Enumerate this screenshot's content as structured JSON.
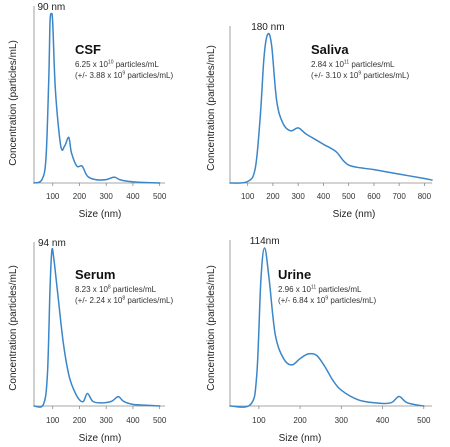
{
  "chart_data": [
    {
      "type": "line",
      "title": "CSF",
      "info_line1": {
        "base": "6.25 x 10",
        "exp": "10",
        "unit": " particles/mL"
      },
      "info_line2": {
        "base": "(+/- 3.88 x 10",
        "exp": "9",
        "unit": " particles/mL)"
      },
      "peak_label": "90 nm",
      "xlabel": "Size (nm)",
      "ylabel": "Concentration (particles/mL)",
      "xticks": [
        100,
        200,
        300,
        400,
        500
      ],
      "xlim": [
        30,
        520
      ],
      "ylim": [
        0,
        1.0
      ],
      "x": [
        30,
        60,
        75,
        85,
        90,
        95,
        100,
        110,
        130,
        145,
        160,
        170,
        190,
        210,
        230,
        260,
        300,
        330,
        350,
        380,
        420,
        500
      ],
      "y": [
        0,
        0.02,
        0.15,
        0.6,
        0.95,
        1.0,
        0.95,
        0.55,
        0.22,
        0.22,
        0.27,
        0.18,
        0.1,
        0.1,
        0.04,
        0.02,
        0.02,
        0.035,
        0.02,
        0.01,
        0.005,
        0
      ]
    },
    {
      "type": "line",
      "title": "Saliva",
      "info_line1": {
        "base": "2.84 x 10",
        "exp": "11",
        "unit": " particles/mL"
      },
      "info_line2": {
        "base": "(+/- 3.10 x 10",
        "exp": "9",
        "unit": " particles/mL)"
      },
      "peak_label": "180 nm",
      "xlabel": "Size (nm)",
      "ylabel": "Concentration (particles/mL)",
      "xticks": [
        100,
        200,
        300,
        400,
        500,
        600,
        700,
        800
      ],
      "xlim": [
        30,
        830
      ],
      "ylim": [
        0,
        1.0
      ],
      "x": [
        30,
        100,
        130,
        150,
        165,
        180,
        195,
        215,
        240,
        270,
        300,
        330,
        360,
        400,
        450,
        500,
        600,
        700,
        800,
        830
      ],
      "y": [
        0,
        0.01,
        0.1,
        0.45,
        0.85,
        1.0,
        0.92,
        0.55,
        0.4,
        0.35,
        0.37,
        0.33,
        0.3,
        0.26,
        0.21,
        0.12,
        0.09,
        0.06,
        0.03,
        0.02
      ]
    },
    {
      "type": "line",
      "title": "Serum",
      "info_line1": {
        "base": "8.23 x 10",
        "exp": "8",
        "unit": " particles/mL"
      },
      "info_line2": {
        "base": "(+/- 2.24 x 10",
        "exp": "8",
        "unit": " particles/mL)"
      },
      "peak_label": "94 nm",
      "xlabel": "Size (nm)",
      "ylabel": "Concentration (particles/mL)",
      "xticks": [
        100,
        200,
        300,
        400,
        500
      ],
      "xlim": [
        30,
        520
      ],
      "ylim": [
        0,
        1.0
      ],
      "x": [
        30,
        65,
        80,
        90,
        97,
        105,
        120,
        140,
        160,
        180,
        200,
        215,
        230,
        250,
        280,
        320,
        345,
        365,
        400,
        450,
        500
      ],
      "y": [
        0,
        0.01,
        0.2,
        0.75,
        1.0,
        0.93,
        0.7,
        0.4,
        0.2,
        0.1,
        0.04,
        0.03,
        0.08,
        0.03,
        0.02,
        0.03,
        0.06,
        0.03,
        0.01,
        0.005,
        0
      ]
    },
    {
      "type": "line",
      "title": "Urine",
      "info_line1": {
        "base": "2.96 x 10",
        "exp": "11",
        "unit": " particles/mL"
      },
      "info_line2": {
        "base": "(+/- 6.84 x 10",
        "exp": "9",
        "unit": " particles/mL)"
      },
      "peak_label": "114nm",
      "xlabel": "Size (nm)",
      "ylabel": "Concentration (particles/mL)",
      "xticks": [
        100,
        200,
        300,
        400,
        500
      ],
      "xlim": [
        30,
        520
      ],
      "ylim": [
        0,
        1.0
      ],
      "x": [
        30,
        80,
        95,
        105,
        114,
        125,
        140,
        160,
        180,
        200,
        220,
        240,
        260,
        280,
        300,
        340,
        380,
        420,
        440,
        460,
        500
      ],
      "y": [
        0,
        0.01,
        0.2,
        0.8,
        1.0,
        0.8,
        0.45,
        0.3,
        0.26,
        0.3,
        0.33,
        0.32,
        0.25,
        0.16,
        0.1,
        0.04,
        0.02,
        0.02,
        0.06,
        0.02,
        0
      ]
    }
  ],
  "colors": {
    "curve": "#3a86c8",
    "axis": "#8a8a8a"
  }
}
